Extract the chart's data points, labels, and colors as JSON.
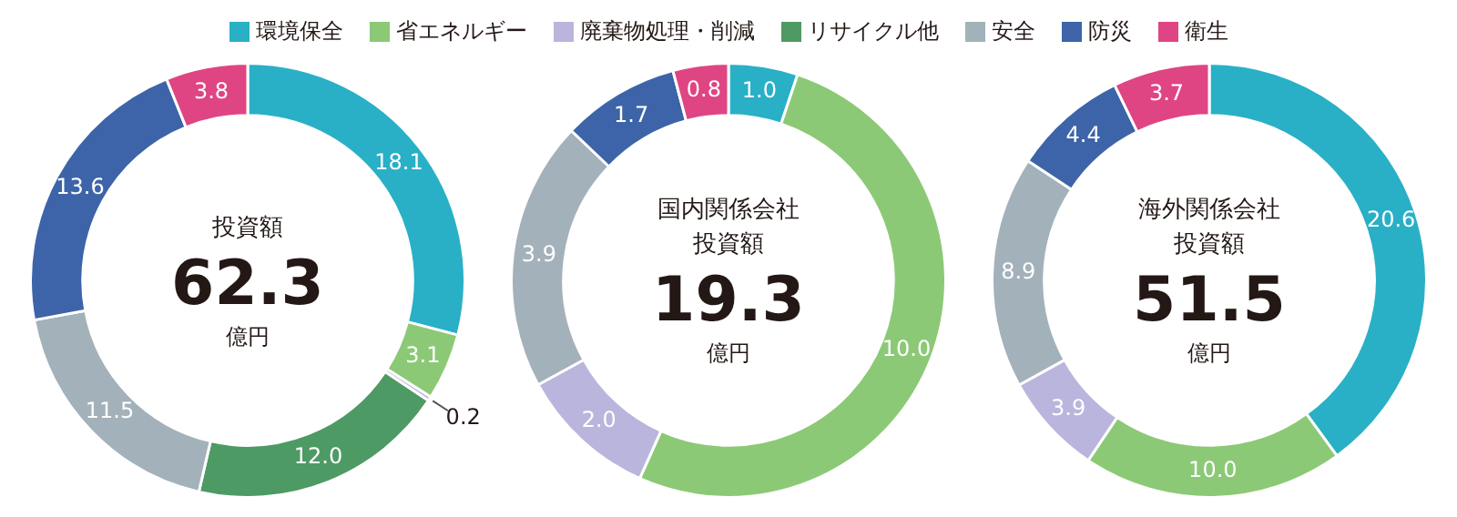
{
  "chart_data": [
    {
      "type": "donut",
      "title": "投資額",
      "annotations": [
        "62.3",
        "億円"
      ],
      "legend": "top",
      "categories": [
        "環境保全",
        "省エネルギー",
        "廃棄物処理・削減",
        "リサイクル他",
        "安全",
        "防災",
        "衛生"
      ],
      "values": [
        18.1,
        3.1,
        0.2,
        12.0,
        11.5,
        13.6,
        3.8
      ],
      "value_labels": [
        "18.1",
        "3.1",
        "0.2",
        "12.0",
        "11.5",
        "13.6",
        "3.8"
      ],
      "colors": [
        "#29b0c6",
        "#8cc976",
        "#b9b5dc",
        "#4e9a64",
        "#a3b1ba",
        "#3d64a8",
        "#df4582"
      ]
    },
    {
      "type": "donut",
      "title": "国内関係会社投資額",
      "annotations": [
        "19.3",
        "億円"
      ],
      "categories": [
        null,
        null,
        null,
        null,
        null,
        null
      ],
      "values": [
        1.0,
        10.0,
        2.0,
        3.9,
        1.7,
        0.8
      ],
      "value_labels": [
        "1.0",
        "10.0",
        "2.0",
        "3.9",
        "1.7",
        "0.8"
      ],
      "colors": [
        "#29b0c6",
        "#8cc976",
        "#b9b5dc",
        "#a3b1ba",
        "#3d64a8",
        "#df4582"
      ]
    },
    {
      "type": "donut",
      "title": "海外関係会社投資額",
      "annotations": [
        "51.5",
        "億円"
      ],
      "categories": [
        null,
        null,
        null,
        null,
        null,
        null
      ],
      "values": [
        20.6,
        10.0,
        3.9,
        8.9,
        4.4,
        3.7
      ],
      "value_labels": [
        "20.6",
        "10.0",
        "3.9",
        "8.9",
        "4.4",
        "3.7"
      ],
      "colors": [
        "#29b0c6",
        "#8cc976",
        "#b9b5dc",
        "#a3b1ba",
        "#3d64a8",
        "#df4582"
      ]
    }
  ]
}
